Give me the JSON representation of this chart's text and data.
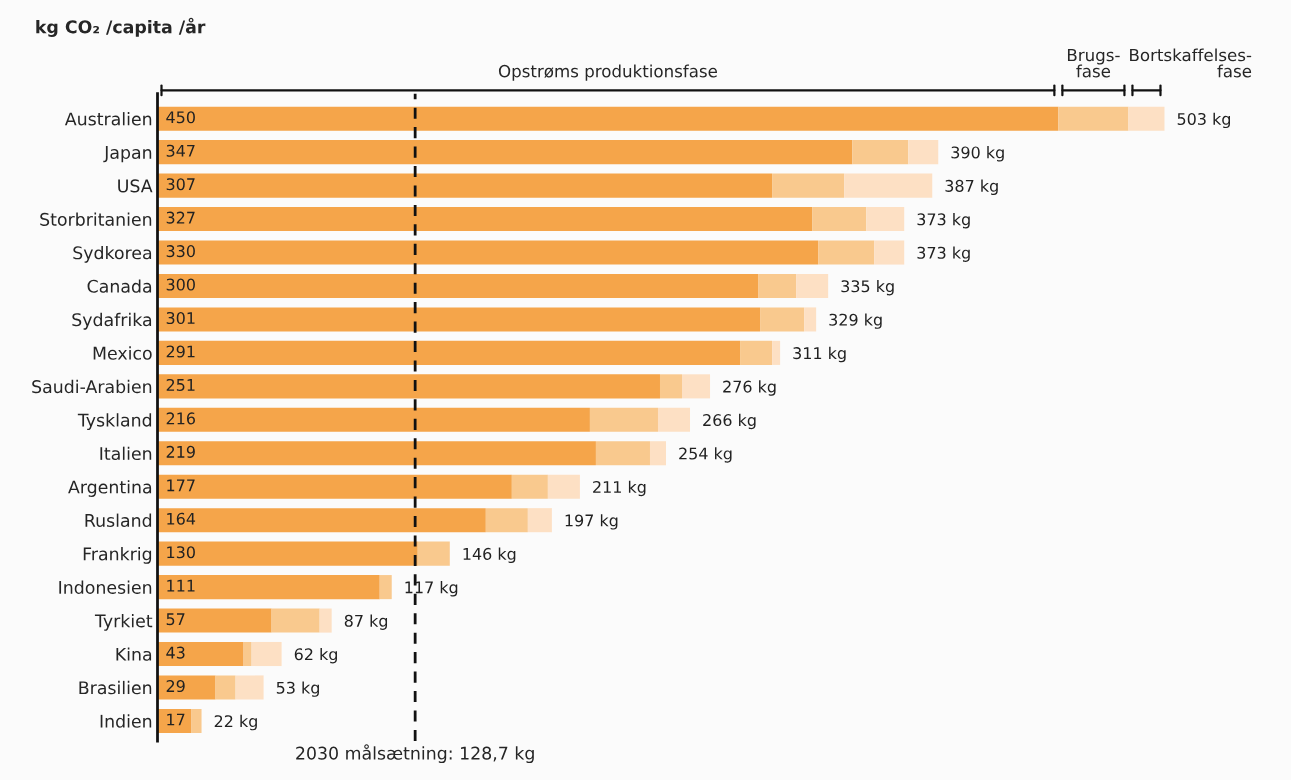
{
  "chart_data": {
    "type": "bar",
    "orientation": "horizontal",
    "stacked": true,
    "ylabel": "kg CO₂ /capita /år",
    "categories": [
      "Australien",
      "Japan",
      "USA",
      "Storbritanien",
      "Sydkorea",
      "Canada",
      "Sydafrika",
      "Mexico",
      "Saudi-Arabien",
      "Tyskland",
      "Italien",
      "Argentina",
      "Rusland",
      "Frankrig",
      "Indonesien",
      "Tyrkiet",
      "Kina",
      "Brasilien",
      "Indien"
    ],
    "series": [
      {
        "color": "#f5a54a",
        "values": [
          450,
          347,
          307,
          327,
          330,
          300,
          301,
          291,
          251,
          216,
          219,
          177,
          164,
          130,
          111,
          57,
          43,
          29,
          17
        ],
        "value_labels": [
          "450",
          "347",
          "307",
          "327",
          "330",
          "300",
          "301",
          "291",
          "251",
          "216",
          "219",
          "177",
          "164",
          "130",
          "111",
          "57",
          "43",
          "29",
          "17"
        ]
      },
      {
        "color": "#f9c98e",
        "values": [
          35,
          28,
          36,
          27,
          28,
          19,
          22,
          16,
          11,
          34,
          27,
          18,
          21,
          16,
          6,
          24,
          4,
          10,
          5
        ]
      },
      {
        "color": "#fde0c4",
        "values": [
          18,
          15,
          44,
          19,
          15,
          16,
          6,
          4,
          14,
          16,
          8,
          16,
          12,
          0,
          0,
          6,
          15,
          14,
          0
        ]
      }
    ],
    "totals": [
      "503 kg",
      "390 kg",
      "387 kg",
      "373 kg",
      "373 kg",
      "335 kg",
      "329 kg",
      "311 kg",
      "276 kg",
      "266 kg",
      "254 kg",
      "211 kg",
      "197 kg",
      "146 kg",
      "117 kg",
      "87 kg",
      "62 kg",
      "53 kg",
      "22 kg"
    ],
    "tick_labels": "y",
    "grid": false,
    "legend": false,
    "ref_lines": [
      {
        "axis": "x",
        "value": 128.7,
        "label": "2030 målsætning: 128,7 kg",
        "color": "#111111",
        "line_style": "dashed"
      }
    ],
    "annotations": [
      "Opstrøms produktionsfase",
      "Brugs-\nfase",
      "Bortskaffelses-\nfase"
    ]
  }
}
